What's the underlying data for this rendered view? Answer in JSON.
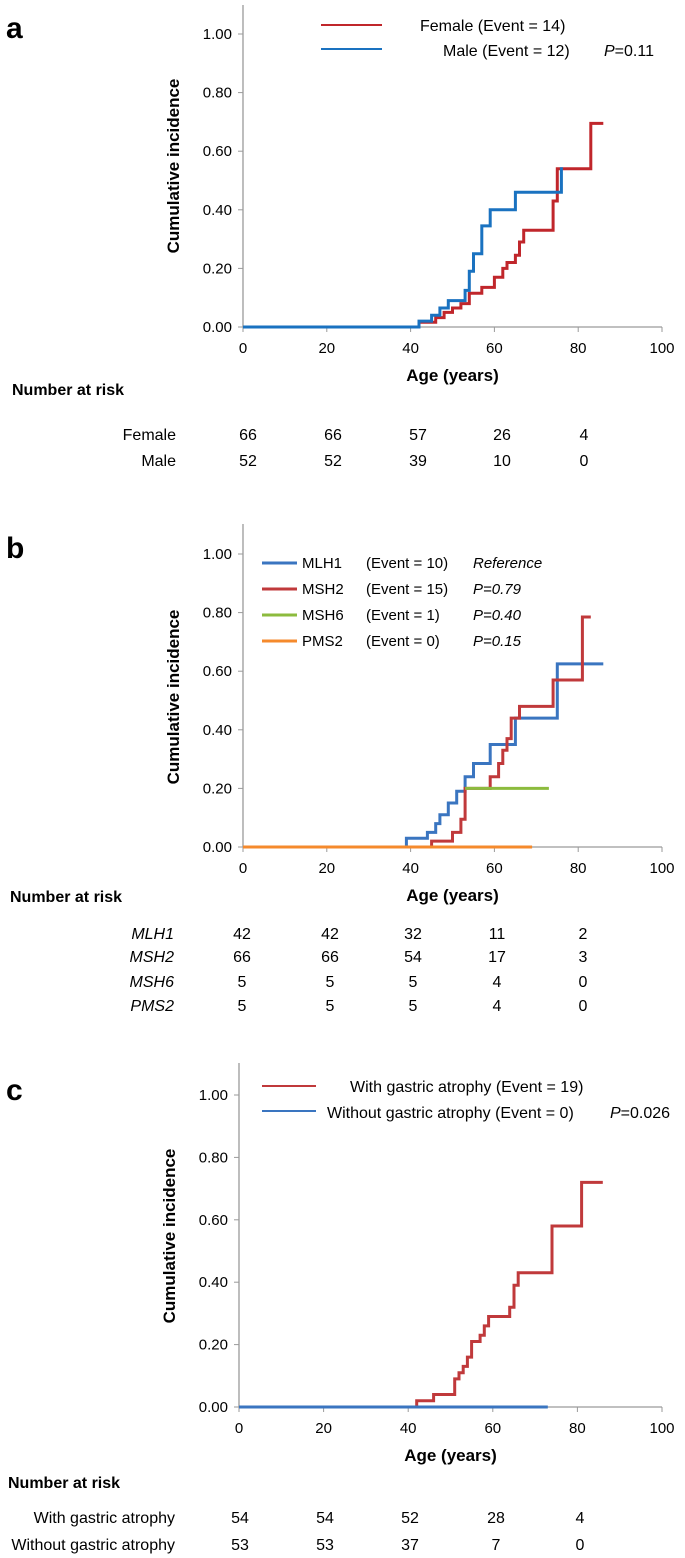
{
  "chart_data": [
    {
      "type": "line",
      "panel_label": "a",
      "xlabel": "Age (years)",
      "ylabel": "Cumulative incidence",
      "xlim": [
        0,
        100
      ],
      "ylim": [
        0,
        1.1
      ],
      "x_ticks": [
        "0",
        "20",
        "40",
        "60",
        "80",
        "100"
      ],
      "y_ticks": [
        "0.00",
        "0.20",
        "0.40",
        "0.60",
        "0.80",
        "1.00"
      ],
      "legend": [
        {
          "name": "Female (Event = 14)",
          "color": "#c0262b"
        },
        {
          "name": "Male (Event = 12)",
          "color": "#1a72c0"
        }
      ],
      "p_label": "P",
      "p_value": "=0.11",
      "series": [
        {
          "name": "Female",
          "color": "#c0262b",
          "x": [
            39,
            42,
            46,
            48,
            50,
            52,
            54,
            57,
            60,
            62,
            63,
            65,
            66,
            67,
            72,
            74,
            75,
            81,
            83,
            86
          ],
          "y": [
            0,
            0.016,
            0.032,
            0.05,
            0.065,
            0.08,
            0.115,
            0.135,
            0.17,
            0.2,
            0.22,
            0.245,
            0.29,
            0.33,
            0.33,
            0.43,
            0.54,
            0.54,
            0.695,
            0.695
          ]
        },
        {
          "name": "Male",
          "color": "#1a72c0",
          "x": [
            0,
            40,
            42,
            45,
            47,
            49,
            52,
            53,
            54,
            55,
            57,
            59,
            65,
            76
          ],
          "y": [
            0,
            0,
            0.02,
            0.04,
            0.065,
            0.09,
            0.09,
            0.125,
            0.19,
            0.25,
            0.345,
            0.4,
            0.46,
            0.545
          ]
        }
      ],
      "risk_table": {
        "title": "Number at risk",
        "rows": [
          {
            "label": "Female",
            "italic": false,
            "values": [
              "66",
              "66",
              "57",
              "26",
              "4"
            ]
          },
          {
            "label": "Male",
            "italic": false,
            "values": [
              "52",
              "52",
              "39",
              "10",
              "0"
            ]
          }
        ]
      }
    },
    {
      "type": "line",
      "panel_label": "b",
      "xlabel": "Age (years)",
      "ylabel": "Cumulative incidence",
      "xlim": [
        0,
        100
      ],
      "ylim": [
        0,
        1.1
      ],
      "x_ticks": [
        "0",
        "20",
        "40",
        "60",
        "80",
        "100"
      ],
      "y_ticks": [
        "0.00",
        "0.20",
        "0.40",
        "0.60",
        "0.80",
        "1.00"
      ],
      "legend": [
        {
          "name": "MLH1",
          "event": "(Event = 10)",
          "p": "Reference",
          "color": "#3a75c0"
        },
        {
          "name": "MSH2",
          "event": "(Event = 15)",
          "p": "P=0.79",
          "color": "#c0393b"
        },
        {
          "name": "MSH6",
          "event": "(Event = 1)",
          "p": "P=0.40",
          "color": "#8cbb3e"
        },
        {
          "name": "PMS2",
          "event": "(Event = 0)",
          "p": "P=0.15",
          "color": "#f58a2c"
        }
      ],
      "series": [
        {
          "name": "MLH1",
          "color": "#3a75c0",
          "x": [
            0,
            39,
            44,
            46,
            47,
            49,
            51,
            53,
            55,
            59,
            63,
            65,
            75,
            86
          ],
          "y": [
            0,
            0.03,
            0.05,
            0.08,
            0.11,
            0.15,
            0.19,
            0.24,
            0.285,
            0.35,
            0.35,
            0.44,
            0.625,
            0.625
          ]
        },
        {
          "name": "MSH2",
          "color": "#c0393b",
          "x": [
            42,
            45,
            50,
            52,
            53,
            57,
            59,
            61,
            62,
            63,
            64,
            66,
            74,
            81,
            83
          ],
          "y": [
            0,
            0.02,
            0.05,
            0.095,
            0.2,
            0.2,
            0.24,
            0.285,
            0.33,
            0.37,
            0.44,
            0.48,
            0.57,
            0.785,
            0.785
          ]
        },
        {
          "name": "MSH6",
          "color": "#8cbb3e",
          "x": [
            53,
            73
          ],
          "y": [
            0.2,
            0.2
          ]
        },
        {
          "name": "PMS2",
          "color": "#f58a2c",
          "x": [
            0,
            69
          ],
          "y": [
            0,
            0
          ]
        }
      ],
      "risk_table": {
        "title": "Number at risk",
        "rows": [
          {
            "label": "MLH1",
            "italic": true,
            "values": [
              "42",
              "42",
              "32",
              "11",
              "2"
            ]
          },
          {
            "label": "MSH2",
            "italic": true,
            "values": [
              "66",
              "66",
              "54",
              "17",
              "3"
            ]
          },
          {
            "label": "MSH6",
            "italic": true,
            "values": [
              "5",
              "5",
              "5",
              "4",
              "0"
            ]
          },
          {
            "label": "PMS2",
            "italic": true,
            "values": [
              "5",
              "5",
              "5",
              "4",
              "0"
            ]
          }
        ]
      }
    },
    {
      "type": "line",
      "panel_label": "c",
      "xlabel": "Age (years)",
      "ylabel": "Cumulative incidence",
      "xlim": [
        0,
        100
      ],
      "ylim": [
        0,
        1.1
      ],
      "x_ticks": [
        "0",
        "20",
        "40",
        "60",
        "80",
        "100"
      ],
      "y_ticks": [
        "0.00",
        "0.20",
        "0.40",
        "0.60",
        "0.80",
        "1.00"
      ],
      "legend": [
        {
          "name": "With gastric atrophy (Event = 19)",
          "color": "#c0393b"
        },
        {
          "name": "Without gastric atrophy (Event = 0)",
          "color": "#3a75c0"
        }
      ],
      "p_label": "P",
      "p_value": "=0.026",
      "series": [
        {
          "name": "With gastric atrophy",
          "color": "#c0393b",
          "x": [
            0,
            42,
            46,
            51,
            52,
            53,
            54,
            55,
            57,
            58,
            59,
            63,
            64,
            65,
            66,
            73,
            74,
            81,
            86
          ],
          "y": [
            0,
            0.02,
            0.04,
            0.09,
            0.11,
            0.13,
            0.16,
            0.21,
            0.23,
            0.26,
            0.29,
            0.29,
            0.32,
            0.39,
            0.43,
            0.43,
            0.58,
            0.72,
            0.72
          ]
        },
        {
          "name": "Without gastric atrophy",
          "color": "#3a75c0",
          "x": [
            0,
            73
          ],
          "y": [
            0,
            0
          ]
        }
      ],
      "risk_table": {
        "title": "Number at risk",
        "rows": [
          {
            "label": "With gastric atrophy",
            "italic": false,
            "values": [
              "54",
              "54",
              "52",
              "28",
              "4"
            ]
          },
          {
            "label": "Without gastric atrophy",
            "italic": false,
            "values": [
              "53",
              "53",
              "37",
              "7",
              "0"
            ]
          }
        ]
      }
    }
  ]
}
